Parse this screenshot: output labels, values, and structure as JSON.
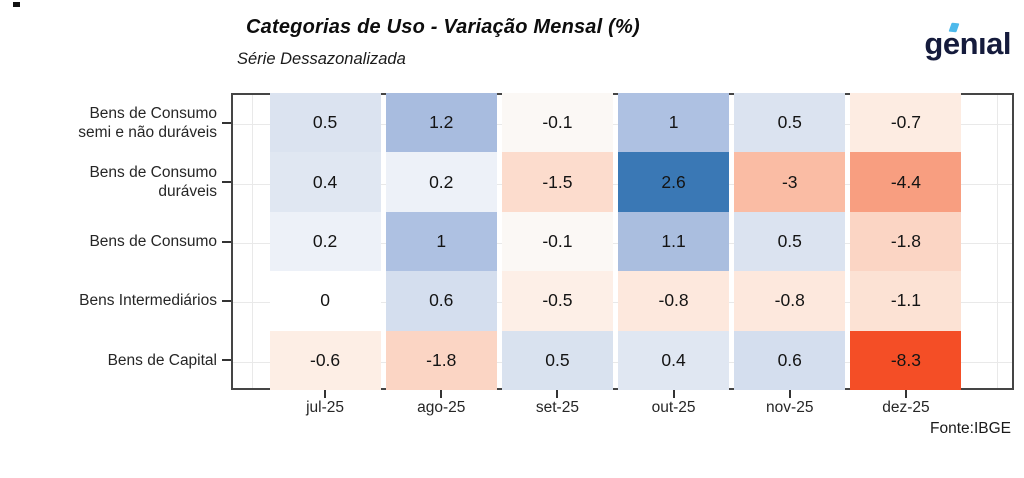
{
  "brand": {
    "logo_text": "genıal",
    "logo_color": "#151b3c",
    "logo_accent_color": "#4db9eb"
  },
  "chart_data": {
    "type": "heatmap",
    "title": "Categorias de Uso - Variação Mensal (%)",
    "subtitle": "Série Dessazonalizada",
    "source": "Fonte:IBGE",
    "legend": "none",
    "grid": true,
    "colors": {
      "panel_border": "#454545",
      "gridline": "#e9e9e9",
      "tick": "#333333",
      "axis_text": "#262626",
      "cell_text": "#141414",
      "diverging_max_blue": "#3a78b5",
      "diverging_min_red": "#f44e26",
      "neutral_white": "#ffffff"
    },
    "rows": [
      "Bens de Consumo\nsemi e não duráveis",
      "Bens de Consumo\nduráveis",
      "Bens de Consumo",
      "Bens Intermediários",
      "Bens de Capital"
    ],
    "columns": [
      "jul-25",
      "ago-25",
      "set-25",
      "out-25",
      "nov-25",
      "dez-25"
    ],
    "values": [
      [
        0.5,
        1.2,
        -0.1,
        1,
        0.5,
        -0.7
      ],
      [
        0.4,
        0.2,
        -1.5,
        2.6,
        -3,
        -4.4
      ],
      [
        0.2,
        1,
        -0.1,
        1.1,
        0.5,
        -1.8
      ],
      [
        0,
        0.6,
        -0.5,
        -0.8,
        -0.8,
        -1.1
      ],
      [
        -0.6,
        -1.8,
        0.5,
        0.4,
        0.6,
        -8.3
      ]
    ],
    "cell_colors": [
      [
        "#dbe3f0",
        "#a8bcdf",
        "#fbf8f5",
        "#aec1e2",
        "#dbe3f0",
        "#fdece2"
      ],
      [
        "#e0e7f2",
        "#edf1f8",
        "#fcdccd",
        "#3a78b5",
        "#fabca4",
        "#f89e80"
      ],
      [
        "#edf1f8",
        "#aec1e2",
        "#fbf8f5",
        "#aabedf",
        "#dbe3f0",
        "#fbd5c4"
      ],
      [
        "#ffffff",
        "#d4deee",
        "#fdefe7",
        "#fde8dd",
        "#fde8dd",
        "#fce2d4"
      ],
      [
        "#fdeee5",
        "#fbd5c4",
        "#d9e2ef",
        "#e0e7f2",
        "#d4deee",
        "#f44e26"
      ]
    ]
  }
}
